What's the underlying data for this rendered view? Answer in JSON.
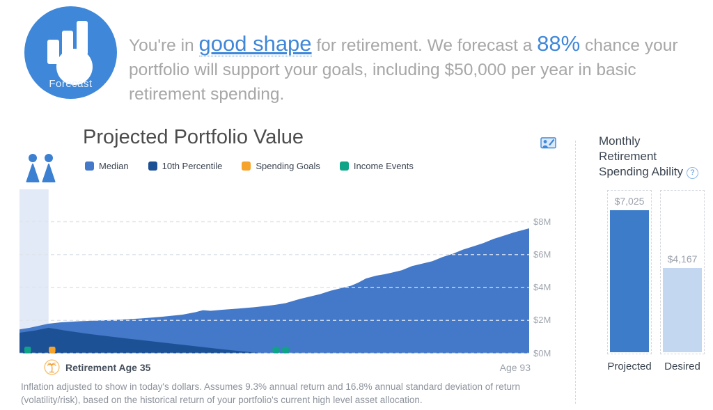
{
  "header": {
    "icon_label": "Forecast",
    "message": {
      "part1": "You're in ",
      "link_text": "good shape",
      "part2": " for retirement. We forecast a ",
      "percent": "88%",
      "part3": " chance your portfolio will support your goals, including $50,000 per year in basic retirement spending."
    }
  },
  "portfolio_chart": {
    "footnote": "Inflation adjusted to show in today's dollars. Assumes 9.3% annual return and 16.8% annual standard deviation of return (volatility/risk), based on the historical return of your portfolio's current high level asset allocation."
  },
  "spending_panel": {
    "title_lines": [
      "Monthly",
      "Retirement",
      "Spending Ability"
    ],
    "help_glyph": "?"
  },
  "colors": {
    "brand_blue": "#3f87d9",
    "median": "#4478c8",
    "percentile10": "#1d5196",
    "spending_goals": "#f5a32a",
    "income_events": "#0fa487",
    "highlight_band": "#e2e9f7",
    "grid": "#e0e4ec",
    "divider": "#d5d9df",
    "bar_projected": "#3d7cc9",
    "bar_desired": "#c3d8f0"
  },
  "chart_data": [
    {
      "type": "area",
      "title": "Projected Portfolio Value",
      "unit": "$ millions (inflation adjusted)",
      "x_axis": {
        "start_label": "Retirement Age 35",
        "end_label": "Age 93",
        "retirement_age": 35,
        "end_age": 93
      },
      "ylim": [
        0,
        8
      ],
      "y_ticks": [
        {
          "value": 0,
          "label": "$0M"
        },
        {
          "value": 2,
          "label": "$2M"
        },
        {
          "value": 4,
          "label": "$4M"
        },
        {
          "value": 6,
          "label": "$6M"
        },
        {
          "value": 8,
          "label": "$8M"
        }
      ],
      "grid": "horizontal-dashed",
      "legend_position": "top",
      "legend": [
        {
          "label": "Median",
          "color": "#4478c8"
        },
        {
          "label": "10th Percentile",
          "color": "#1d5196"
        },
        {
          "label": "Spending Goals",
          "color": "#f5a32a"
        },
        {
          "label": "Income Events",
          "color": "#0fa487"
        }
      ],
      "highlight_band": {
        "x0": 0,
        "x1": 0.057
      },
      "series": [
        {
          "name": "Median",
          "color": "#4478c8",
          "points": [
            [
              0,
              1.45
            ],
            [
              0.02,
              1.55
            ],
            [
              0.045,
              1.72
            ],
            [
              0.057,
              1.8
            ],
            [
              0.08,
              1.88
            ],
            [
              0.12,
              1.95
            ],
            [
              0.16,
              2.0
            ],
            [
              0.2,
              2.05
            ],
            [
              0.24,
              2.12
            ],
            [
              0.28,
              2.22
            ],
            [
              0.32,
              2.35
            ],
            [
              0.345,
              2.5
            ],
            [
              0.36,
              2.62
            ],
            [
              0.375,
              2.58
            ],
            [
              0.4,
              2.65
            ],
            [
              0.43,
              2.72
            ],
            [
              0.46,
              2.8
            ],
            [
              0.49,
              2.9
            ],
            [
              0.503,
              2.95
            ],
            [
              0.522,
              3.05
            ],
            [
              0.55,
              3.3
            ],
            [
              0.57,
              3.45
            ],
            [
              0.59,
              3.6
            ],
            [
              0.61,
              3.8
            ],
            [
              0.63,
              3.95
            ],
            [
              0.65,
              4.1
            ],
            [
              0.665,
              4.3
            ],
            [
              0.68,
              4.55
            ],
            [
              0.7,
              4.72
            ],
            [
              0.715,
              4.8
            ],
            [
              0.73,
              4.9
            ],
            [
              0.75,
              5.05
            ],
            [
              0.77,
              5.3
            ],
            [
              0.79,
              5.45
            ],
            [
              0.81,
              5.6
            ],
            [
              0.83,
              5.85
            ],
            [
              0.85,
              6.05
            ],
            [
              0.87,
              6.3
            ],
            [
              0.89,
              6.5
            ],
            [
              0.91,
              6.7
            ],
            [
              0.93,
              6.95
            ],
            [
              0.95,
              7.15
            ],
            [
              0.97,
              7.35
            ],
            [
              1.0,
              7.6
            ]
          ]
        },
        {
          "name": "10th Percentile",
          "color": "#1d5196",
          "points": [
            [
              0,
              1.25
            ],
            [
              0.03,
              1.38
            ],
            [
              0.057,
              1.55
            ],
            [
              0.09,
              1.38
            ],
            [
              0.13,
              1.2
            ],
            [
              0.17,
              1.05
            ],
            [
              0.21,
              0.9
            ],
            [
              0.25,
              0.76
            ],
            [
              0.29,
              0.62
            ],
            [
              0.33,
              0.48
            ],
            [
              0.37,
              0.34
            ],
            [
              0.41,
              0.2
            ],
            [
              0.45,
              0.08
            ],
            [
              0.475,
              0
            ]
          ]
        }
      ],
      "events": [
        {
          "x": 0.016,
          "type": "Income Events",
          "color": "#0fa487"
        },
        {
          "x": 0.064,
          "type": "Spending Goals",
          "color": "#f5a32a"
        },
        {
          "x": 0.503,
          "type": "Income Events",
          "color": "#0fa487"
        },
        {
          "x": 0.522,
          "type": "Income Events",
          "color": "#0fa487"
        }
      ]
    },
    {
      "type": "bar",
      "title": "Monthly Retirement Spending Ability",
      "categories": [
        "Projected",
        "Desired"
      ],
      "values": [
        7025,
        4167
      ],
      "value_labels": [
        "$7,025",
        "$4,167"
      ],
      "colors": [
        "#3d7cc9",
        "#c3d8f0"
      ],
      "ylim": [
        0,
        8000
      ]
    }
  ]
}
